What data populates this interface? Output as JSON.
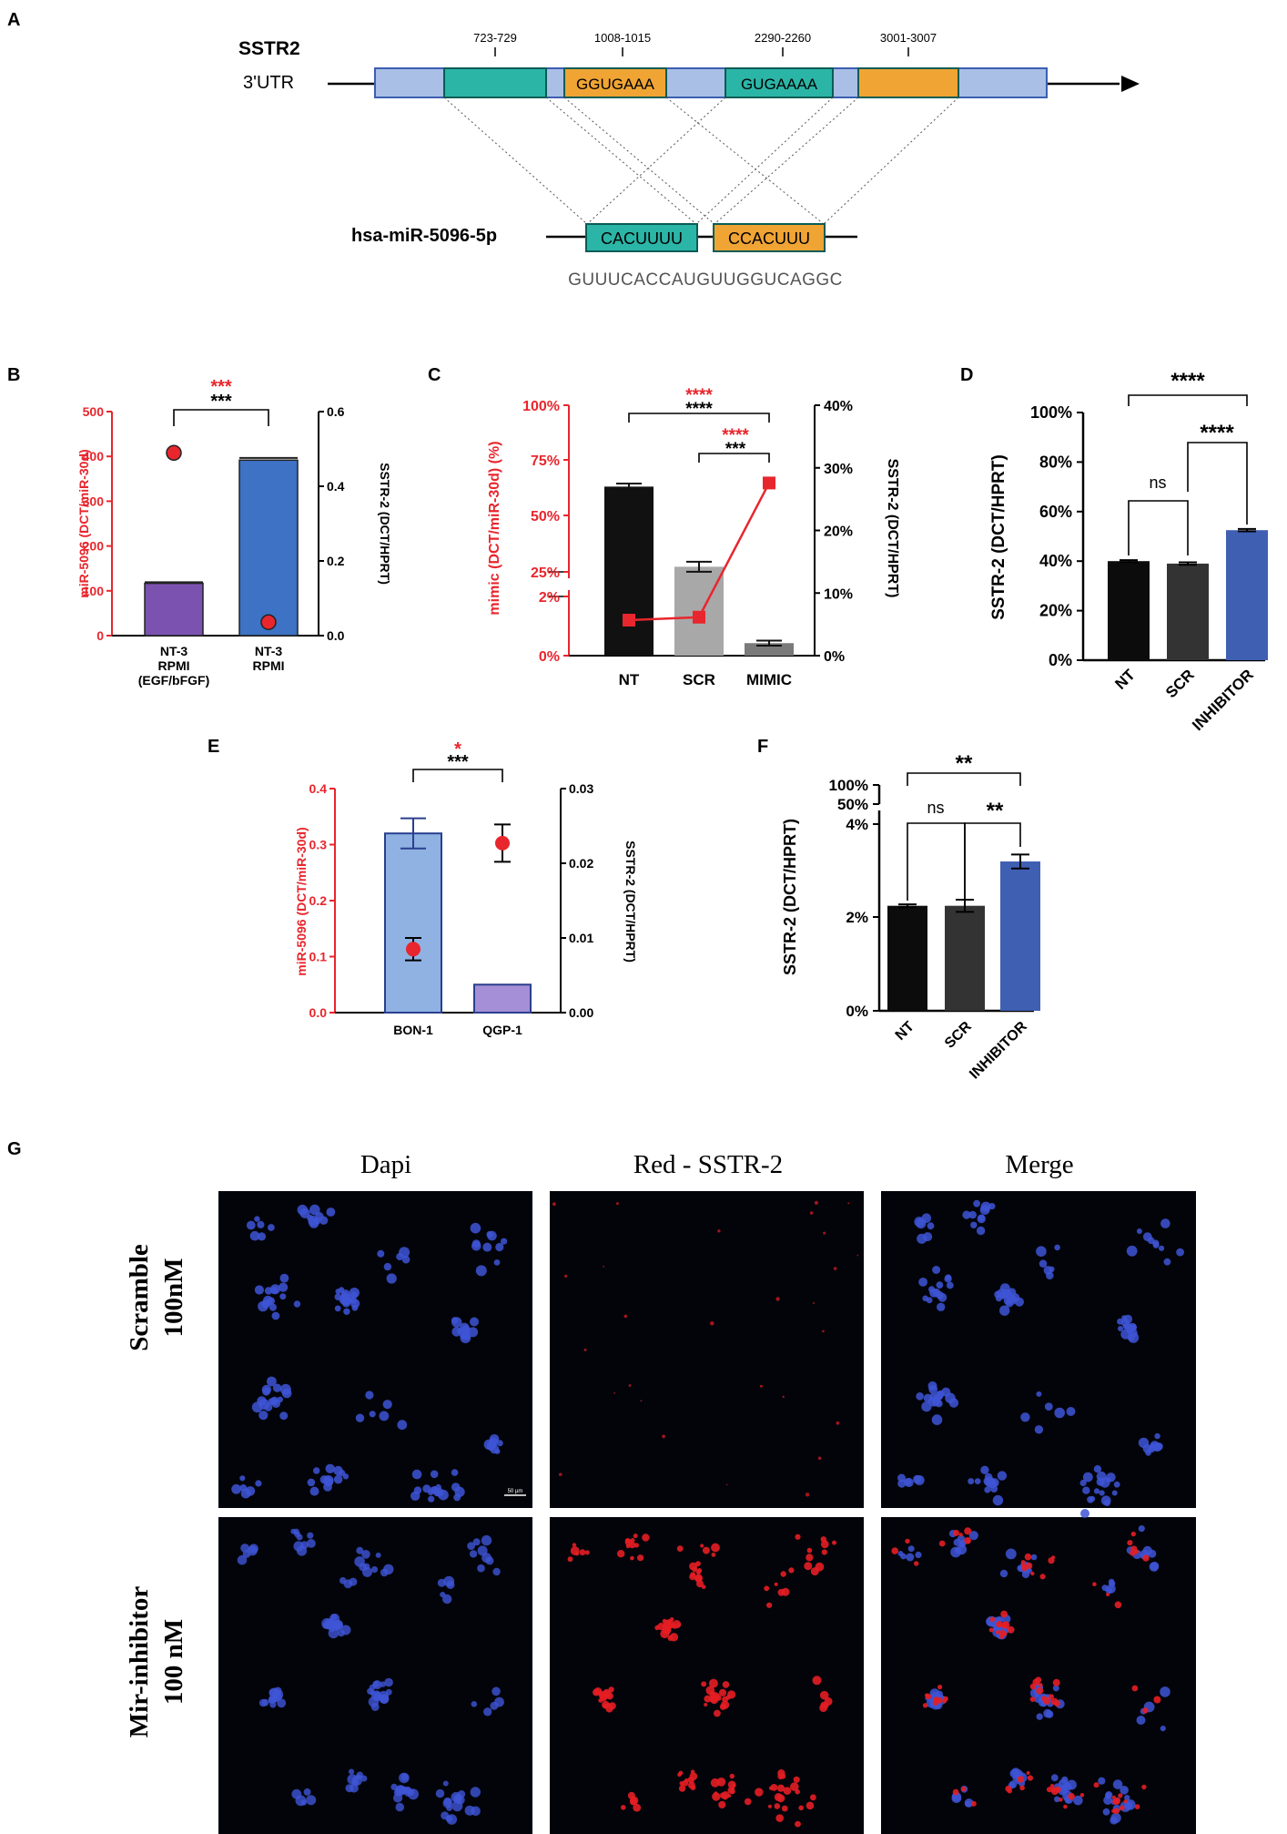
{
  "panels": {
    "A": "A",
    "B": "B",
    "C": "C",
    "D": "D",
    "E": "E",
    "F": "F",
    "G": "G"
  },
  "panelA": {
    "gene": "SSTR2",
    "utr": "3'UTR",
    "sites": [
      {
        "pos": "723-729",
        "seq": "",
        "color": "#2bb5a6"
      },
      {
        "pos": "1008-1015",
        "seq": "GGUGAAA",
        "color": "#f0a434"
      },
      {
        "pos": "2290-2260",
        "seq": "GUGAAAA",
        "color": "#2bb5a6"
      },
      {
        "pos": "3001-3007",
        "seq": "",
        "color": "#f0a434"
      }
    ],
    "mirna": "hsa-miR-5096-5p",
    "mirna_seed1": "CACUUUU",
    "mirna_seed2": "CCACUUU",
    "mirna_full": "GUUUCACCAUGUUGGUCAGGC",
    "utr_fill": "#a9bfe6",
    "utr_stroke": "#3b5fb0"
  },
  "chart_data": [
    {
      "panel": "B",
      "type": "bar",
      "categories": [
        "NT-3\nRPMI\n(EGF/bFGF)",
        "NT-3\nRPMI"
      ],
      "bar_axis": "right",
      "bar_values": [
        0.14,
        0.47
      ],
      "bar_errors": [
        0.003,
        0.006
      ],
      "bar_colors": [
        "#7b52b0",
        "#3d72c4"
      ],
      "points": [
        408,
        30
      ],
      "points_axis": "left",
      "ylabel_left": "miR-5096 (DCT/miR-30d)",
      "ylabel_right": "SSTR-2 (DCT/HPRT)",
      "ylim_left": [
        0,
        500
      ],
      "ylim_right": [
        0,
        0.6
      ],
      "yticks_left": [
        "0",
        "100",
        "200",
        "300",
        "400",
        "500"
      ],
      "yticks_right": [
        "0.0",
        "0.2",
        "0.4",
        "0.6"
      ],
      "sig_red": "***",
      "sig_black": "***"
    },
    {
      "panel": "C",
      "type": "bar",
      "categories": [
        "NT",
        "SCR",
        "MIMIC"
      ],
      "bar_axis": "right",
      "bar_values": [
        27,
        14.2,
        2.0
      ],
      "bar_errors": [
        0.5,
        0.8,
        0.4
      ],
      "bar_colors": [
        "#111111",
        "#a8a8a8",
        "#7a7a7a"
      ],
      "points": [
        1.2,
        1.3,
        65
      ],
      "points_axis": "left",
      "ylabel_left": "mimic (DCT/miR-30d) (%)",
      "ylabel_right": "SSTR-2 (DCT/HPRT)",
      "yticks_left": [
        "0%",
        "2%",
        "25%",
        "50%",
        "75%",
        "100%"
      ],
      "yticks_right": [
        "0%",
        "10%",
        "20%",
        "30%",
        "40%"
      ],
      "sig": [
        {
          "red": "****",
          "black": "****"
        },
        {
          "red": "****",
          "black": "***"
        }
      ]
    },
    {
      "panel": "D",
      "type": "bar",
      "categories": [
        "NT",
        "SCR",
        "INHIBITOR"
      ],
      "values": [
        40,
        39,
        52.5
      ],
      "errors": [
        0.4,
        0.5,
        0.5
      ],
      "bar_colors": [
        "#0c0c0c",
        "#333333",
        "#3f5fb3"
      ],
      "ylabel": "SSTR-2 (DCT/HPRT)",
      "ylim": [
        0,
        100
      ],
      "yticks": [
        "0%",
        "20%",
        "40%",
        "60%",
        "80%",
        "100%"
      ],
      "sig": [
        "****",
        "****",
        "ns"
      ]
    },
    {
      "panel": "E",
      "type": "bar",
      "categories": [
        "BON-1",
        "QGP-1"
      ],
      "bar_axis": "left",
      "bar_values": [
        0.32,
        0.05
      ],
      "bar_errors": [
        0.027,
        0
      ],
      "bar_colors": [
        "#8fb2e3",
        "#a58fd6"
      ],
      "points": [
        0.0085,
        0.0227
      ],
      "point_errors": [
        0.0015,
        0.0025
      ],
      "points_axis": "right",
      "ylabel_left": "miR-5096 (DCT/miR-30d)",
      "ylabel_right": "SSTR-2 (DCT/HPRT)",
      "ylim_left": [
        0,
        0.4
      ],
      "ylim_right": [
        0,
        0.03
      ],
      "yticks_left": [
        "0.0",
        "0.1",
        "0.2",
        "0.3",
        "0.4"
      ],
      "yticks_right": [
        "0.00",
        "0.01",
        "0.02",
        "0.03"
      ],
      "sig_red": "*",
      "sig_black": "***"
    },
    {
      "panel": "F",
      "type": "bar",
      "categories": [
        "NT",
        "SCR",
        "INHIBITOR"
      ],
      "values": [
        2.25,
        2.25,
        3.2
      ],
      "errors": [
        0.03,
        0.13,
        0.15
      ],
      "bar_colors": [
        "#0c0c0c",
        "#333333",
        "#3f5fb3"
      ],
      "ylabel": "SSTR-2 (DCT/HPRT)",
      "yticks": [
        "0%",
        "2%",
        "4%",
        "50%",
        "100%"
      ],
      "sig": [
        "**",
        "ns",
        "**"
      ]
    }
  ],
  "panelG": {
    "columns": [
      "Dapi",
      "Red - SSTR-2",
      "Merge"
    ],
    "rows": [
      [
        "Scramble",
        "100nM"
      ],
      [
        "Mir-inhibitor",
        "100 nM"
      ]
    ],
    "scale_bar": "50 µm"
  }
}
